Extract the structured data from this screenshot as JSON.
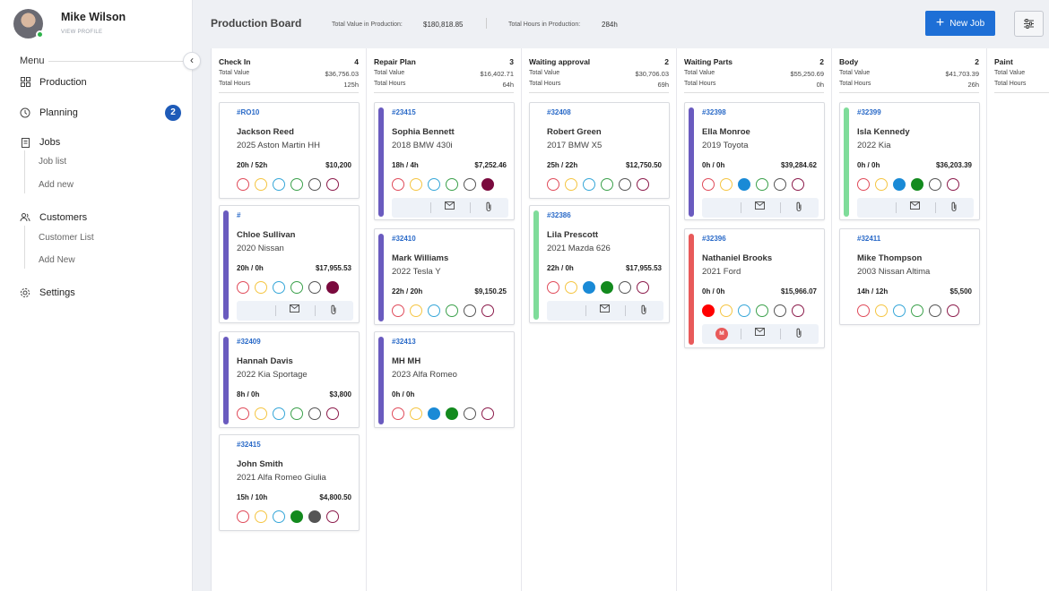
{
  "profile": {
    "name": "Mike Wilson",
    "link": "VIEW PROFILE"
  },
  "menu": {
    "title": "Menu",
    "production": "Production",
    "planning": "Planning",
    "planning_badge": "2",
    "jobs": "Jobs",
    "job_list": "Job list",
    "add_new_job": "Add new",
    "customers": "Customers",
    "customer_list": "Customer List",
    "add_new_customer": "Add New",
    "settings": "Settings"
  },
  "header": {
    "title": "Production Board",
    "total_value_label": "Total Value in Production:",
    "total_value": "$180,818.85",
    "total_hours_label": "Total Hours in Production:",
    "total_hours": "284h",
    "new_job": "New Job"
  },
  "labels": {
    "total_value": "Total Value",
    "total_hours": "Total Hours"
  },
  "colors": {
    "accent": "#1e6fd6",
    "bar_purple": "#6a5bbf",
    "bar_green": "#7fdc9a",
    "bar_red": "#e85a5a",
    "dot_red": "#e04b5a",
    "dot_yellow": "#f5c542",
    "dot_blue": "#35a6d8",
    "dot_green": "#3aa04a",
    "dot_gray": "#555555",
    "dot_maroon": "#8b1a4a",
    "fill_blue": "#1a8ad6",
    "fill_green": "#138a1e",
    "fill_red": "#ff0000",
    "fill_maroon": "#7a0a3e",
    "fill_gray": "#555555"
  },
  "columns": [
    {
      "title": "Check In",
      "count": "4",
      "value": "$36,756.03",
      "hours": "125h",
      "cards": [
        {
          "ro": "#RO10",
          "name": "Jackson Reed",
          "vehicle": "2025 Aston Martin HH",
          "hours": "20h / 52h",
          "price": "$10,200"
        },
        {
          "ro": "#",
          "name": "Chloe Sullivan",
          "vehicle": "2020 Nissan",
          "hours": "20h / 0h",
          "price": "$17,955.53"
        },
        {
          "ro": "#32409",
          "name": "Hannah Davis",
          "vehicle": "2022 Kia Sportage",
          "hours": "8h / 0h",
          "price": "$3,800"
        },
        {
          "ro": "#32415",
          "name": "John Smith",
          "vehicle": "2021 Alfa Romeo Giulia",
          "hours": "15h / 10h",
          "price": "$4,800.50"
        }
      ]
    },
    {
      "title": "Repair Plan",
      "count": "3",
      "value": "$16,402.71",
      "hours": "64h",
      "cards": [
        {
          "ro": "#23415",
          "name": "Sophia Bennett",
          "vehicle": "2018 BMW 430i",
          "hours": "18h / 4h",
          "price": "$7,252.46"
        },
        {
          "ro": "#32410",
          "name": "Mark Williams",
          "vehicle": "2022 Tesla Y",
          "hours": "22h / 20h",
          "price": "$9,150.25"
        },
        {
          "ro": "#32413",
          "name": "MH MH",
          "vehicle": "2023 Alfa Romeo",
          "hours": "0h / 0h",
          "price": ""
        }
      ]
    },
    {
      "title": "Waiting approval",
      "count": "2",
      "value": "$30,706.03",
      "hours": "69h",
      "cards": [
        {
          "ro": "#32408",
          "name": "Robert Green",
          "vehicle": "2017 BMW X5",
          "hours": "25h / 22h",
          "price": "$12,750.50"
        },
        {
          "ro": "#32386",
          "name": "Lila Prescott",
          "vehicle": "2021 Mazda 626",
          "hours": "22h / 0h",
          "price": "$17,955.53"
        }
      ]
    },
    {
      "title": "Waiting Parts",
      "count": "2",
      "value": "$55,250.69",
      "hours": "0h",
      "cards": [
        {
          "ro": "#32398",
          "name": "Ella Monroe",
          "vehicle": "2019 Toyota",
          "hours": "0h / 0h",
          "price": "$39,284.62"
        },
        {
          "ro": "#32396",
          "name": "Nathaniel Brooks",
          "vehicle": "2021 Ford",
          "hours": "0h / 0h",
          "price": "$15,966.07",
          "badge": "M"
        }
      ]
    },
    {
      "title": "Body",
      "count": "2",
      "value": "$41,703.39",
      "hours": "26h",
      "cards": [
        {
          "ro": "#32399",
          "name": "Isla Kennedy",
          "vehicle": "2022 Kia",
          "hours": "0h / 0h",
          "price": "$36,203.39"
        },
        {
          "ro": "#32411",
          "name": "Mike Thompson",
          "vehicle": "2003 Nissan Altima",
          "hours": "14h / 12h",
          "price": "$5,500"
        }
      ]
    },
    {
      "title": "Paint",
      "count": "",
      "value": "",
      "hours": "",
      "cards": []
    }
  ]
}
